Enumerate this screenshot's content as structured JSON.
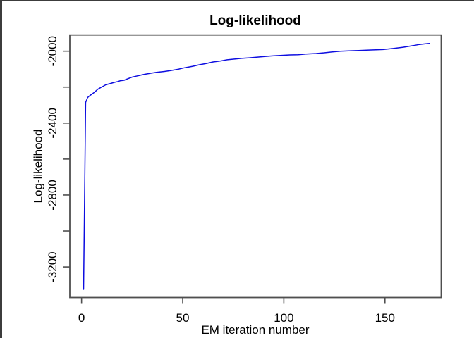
{
  "window": {
    "background": "#ffffff",
    "edge_color": "#3c3c3c"
  },
  "style": {
    "box_color": "#4f4f4f",
    "text_color": "#000000",
    "box_stroke_width": 1.8,
    "tick_stroke_width": 1.6
  },
  "chart_data": {
    "type": "line",
    "title": "Log-likelihood",
    "xlabel": "EM iteration number",
    "ylabel": "Log-likelihood",
    "xlim": [
      -5.8,
      177.8
    ],
    "ylim": [
      -3370,
      -1910
    ],
    "grid": false,
    "legend": "none",
    "x_ticks": {
      "values": [
        0,
        50,
        100,
        150
      ],
      "labels": [
        "0",
        "50",
        "100",
        "150"
      ]
    },
    "y_ticks": {
      "values": [
        -2000,
        -2200,
        -2400,
        -2600,
        -2800,
        -3000,
        -3200
      ],
      "labels": [
        "-2000",
        "",
        "-2400",
        "",
        "-2800",
        "",
        "-3200"
      ]
    },
    "series": [
      {
        "name": "log-likelihood",
        "color": "#0d0de0",
        "stroke_width": 1.5,
        "points": [
          [
            1,
            -3325
          ],
          [
            2,
            -2285
          ],
          [
            3,
            -2258
          ],
          [
            4,
            -2248
          ],
          [
            6,
            -2232
          ],
          [
            7,
            -2222
          ],
          [
            8,
            -2212
          ],
          [
            10,
            -2199
          ],
          [
            11,
            -2193
          ],
          [
            12,
            -2187
          ],
          [
            14,
            -2181
          ],
          [
            16,
            -2174
          ],
          [
            18,
            -2169
          ],
          [
            19,
            -2165
          ],
          [
            21,
            -2162
          ],
          [
            23,
            -2153
          ],
          [
            25,
            -2144
          ],
          [
            27,
            -2139
          ],
          [
            29,
            -2134
          ],
          [
            31,
            -2129
          ],
          [
            34,
            -2123
          ],
          [
            37,
            -2118
          ],
          [
            41,
            -2113
          ],
          [
            44,
            -2108
          ],
          [
            48,
            -2100
          ],
          [
            51,
            -2092
          ],
          [
            55,
            -2084
          ],
          [
            58,
            -2076
          ],
          [
            62,
            -2068
          ],
          [
            65,
            -2060
          ],
          [
            69,
            -2054
          ],
          [
            72,
            -2048
          ],
          [
            76,
            -2043
          ],
          [
            79,
            -2040
          ],
          [
            83,
            -2037
          ],
          [
            87,
            -2033
          ],
          [
            91,
            -2029
          ],
          [
            95,
            -2026
          ],
          [
            99,
            -2023
          ],
          [
            103,
            -2021
          ],
          [
            107,
            -2020
          ],
          [
            111,
            -2016
          ],
          [
            116,
            -2013
          ],
          [
            120,
            -2009
          ],
          [
            124,
            -2004
          ],
          [
            128,
            -2000
          ],
          [
            132,
            -1998
          ],
          [
            137,
            -1996
          ],
          [
            142,
            -1994
          ],
          [
            149,
            -1991
          ],
          [
            154,
            -1985
          ],
          [
            159,
            -1978
          ],
          [
            164,
            -1969
          ],
          [
            167,
            -1963
          ],
          [
            170,
            -1959
          ],
          [
            172,
            -1957
          ]
        ]
      }
    ]
  }
}
